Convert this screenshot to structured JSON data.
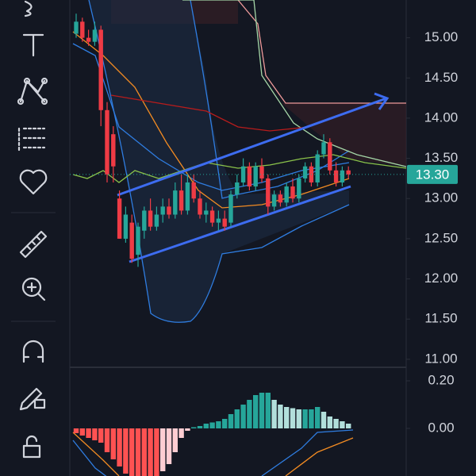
{
  "chart_data": [
    {
      "type": "candlestick",
      "open": [
        15.05,
        15.2,
        15.0,
        14.95,
        15.1,
        14.1,
        13.8,
        13.0,
        12.5,
        12.7,
        12.3,
        12.6,
        12.85,
        12.65,
        12.8,
        12.9,
        12.8,
        13.1,
        12.85,
        13.2,
        13.0,
        12.8,
        12.85,
        12.7,
        12.75,
        12.7,
        13.05,
        13.2,
        13.4,
        13.15,
        13.4,
        13.25,
        12.9,
        13.05,
        12.95,
        13.15,
        13.0,
        13.25,
        13.4,
        13.2,
        13.55,
        13.7,
        13.35,
        13.2,
        13.35
      ],
      "high": [
        15.3,
        15.25,
        15.1,
        15.2,
        15.15,
        14.2,
        13.9,
        13.1,
        12.9,
        12.8,
        12.7,
        12.9,
        13.0,
        12.9,
        13.0,
        13.0,
        13.2,
        13.3,
        13.3,
        13.3,
        13.1,
        12.95,
        12.9,
        12.85,
        12.85,
        13.1,
        13.3,
        13.5,
        13.45,
        13.45,
        13.5,
        13.3,
        13.1,
        13.1,
        13.2,
        13.25,
        13.3,
        13.45,
        13.45,
        13.6,
        13.8,
        13.75,
        13.45,
        13.4,
        13.4
      ],
      "low": [
        15.0,
        14.95,
        14.9,
        14.9,
        13.9,
        13.2,
        13.2,
        12.5,
        12.45,
        12.2,
        12.15,
        12.5,
        12.6,
        12.6,
        12.7,
        12.75,
        12.75,
        12.8,
        12.8,
        12.95,
        12.75,
        12.7,
        12.65,
        12.6,
        12.6,
        12.65,
        13.0,
        13.15,
        13.1,
        13.1,
        13.2,
        12.8,
        12.85,
        12.9,
        12.9,
        12.95,
        12.95,
        13.2,
        13.15,
        13.15,
        13.5,
        13.3,
        13.15,
        13.15,
        13.25
      ],
      "close": [
        15.2,
        15.0,
        14.95,
        15.1,
        14.1,
        13.3,
        13.4,
        12.5,
        12.8,
        12.25,
        12.65,
        12.85,
        12.65,
        12.8,
        12.9,
        12.8,
        13.1,
        12.85,
        13.2,
        13.0,
        12.8,
        12.85,
        12.7,
        12.75,
        12.65,
        13.05,
        13.2,
        13.4,
        13.15,
        13.4,
        13.25,
        12.9,
        13.05,
        12.95,
        13.15,
        13.0,
        13.25,
        13.4,
        13.2,
        13.55,
        13.7,
        13.35,
        13.2,
        13.35,
        13.3
      ],
      "up_color": "#26a69a",
      "down_color": "#ef3b45",
      "ylim": [
        10.9,
        15.47
      ],
      "yticks": [
        {
          "value": 11,
          "label": "11.00"
        },
        {
          "value": 11.5,
          "label": "11.50"
        },
        {
          "value": 12,
          "label": "12.00"
        },
        {
          "value": 12.5,
          "label": "12.50"
        },
        {
          "value": 13,
          "label": "13.00"
        },
        {
          "value": 13.5,
          "label": "13.50"
        },
        {
          "value": 14,
          "label": "14.00"
        },
        {
          "value": 14.5,
          "label": "14.50"
        },
        {
          "value": 15,
          "label": "15.00"
        }
      ],
      "last_price": {
        "value": 13.3,
        "label": "13.30"
      }
    },
    {
      "type": "histogram",
      "values": [
        -0.02,
        -0.03,
        -0.04,
        -0.05,
        -0.06,
        -0.1,
        -0.13,
        -0.16,
        -0.19,
        -0.2,
        -0.2,
        -0.2,
        -0.2,
        -0.2,
        -0.18,
        -0.15,
        -0.1,
        -0.04,
        -0.01,
        0.005,
        0.01,
        0.02,
        0.025,
        0.03,
        0.04,
        0.06,
        0.08,
        0.1,
        0.12,
        0.14,
        0.15,
        0.15,
        0.12,
        0.1,
        0.09,
        0.085,
        0.08,
        0.08,
        0.08,
        0.09,
        0.07,
        0.05,
        0.04,
        0.03,
        0.02
      ],
      "colors": {
        "neg_falling": "#ff5252",
        "neg_rising": "#ffcdd2",
        "pos_rising": "#26a69a",
        "pos_falling": "#b2dfdb"
      },
      "ylim": [
        -0.2,
        0.25
      ],
      "yticks": [
        {
          "value": 0,
          "label": "0.00"
        },
        {
          "value": 0.2,
          "label": "0.20"
        }
      ]
    }
  ]
}
